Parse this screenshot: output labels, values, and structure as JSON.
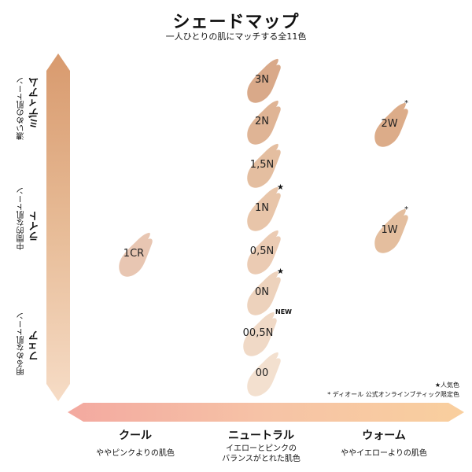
{
  "header": {
    "title": "シェードマップ",
    "subtitle": "一人ひとりの肌にマッチする全11色"
  },
  "y_axis": {
    "top": {
      "small": "濃いめの肌トーン",
      "big": "ミディアム"
    },
    "middle": {
      "small": "中間的な肌トーン",
      "big": "ライト"
    },
    "bottom": {
      "small": "明るめな肌トーン",
      "big": "フェア"
    }
  },
  "x_axis": {
    "left": {
      "label": "クール",
      "desc": "ややピンクよりの肌色"
    },
    "center": {
      "label": "ニュートラル",
      "desc1": "イエローとピンクの",
      "desc2": "バランスがとれた肌色"
    },
    "right": {
      "label": "ウォーム",
      "desc": "ややイエローよりの肌色"
    }
  },
  "legend": {
    "popular": "★人気色",
    "online": "* ディオール 公式オンラインブティック限定色"
  },
  "shades": [
    {
      "name": "3N",
      "color": "#d6a27f",
      "mark": ""
    },
    {
      "name": "2N",
      "color": "#dcae8c",
      "mark": ""
    },
    {
      "name": "1,5N",
      "color": "#e2b898",
      "mark": ""
    },
    {
      "name": "1N",
      "color": "#e6c0a2",
      "mark": "★"
    },
    {
      "name": "0,5N",
      "color": "#e9c7ac",
      "mark": ""
    },
    {
      "name": "0N",
      "color": "#ecceb6",
      "mark": "★"
    },
    {
      "name": "00,5N",
      "color": "#efd6c1",
      "mark": "NEW"
    },
    {
      "name": "00",
      "color": "#f2ddcb",
      "mark": ""
    },
    {
      "name": "1CR",
      "color": "#e6c1ab",
      "mark": ""
    },
    {
      "name": "2W",
      "color": "#d9a57f",
      "mark": "*"
    },
    {
      "name": "1W",
      "color": "#e2b896",
      "mark": "*"
    }
  ]
}
